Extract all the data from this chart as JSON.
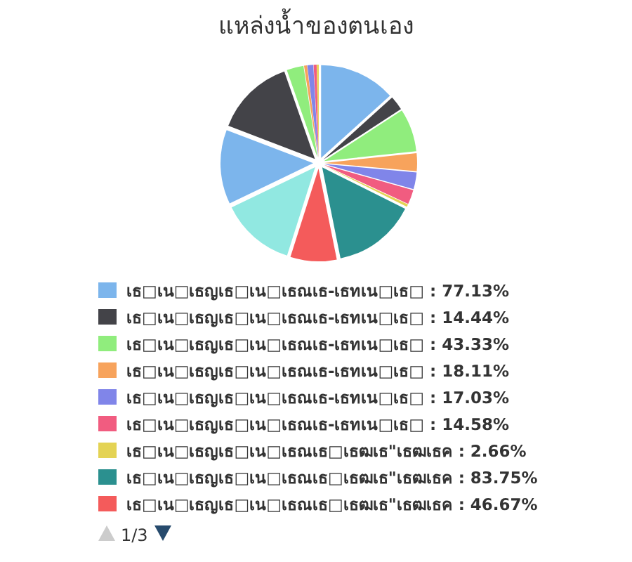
{
  "chart_data": {
    "type": "pie",
    "title": "แหล่งน้ำของตนเอง",
    "categories": [
      "เธ□เน□เธญเธ□เน□เธณเธ-เธทเน□เธ□",
      "เธ□เน□เธญเธ□เน□เธณเธ-เธทเน□เธ□",
      "เธ□เน□เธญเธ□เน□เธณเธ-เธทเน□เธ□",
      "เธ□เน□เธญเธ□เน□เธณเธ-เธทเน□เธ□",
      "เธ□เน□เธญเธ□เน□เธณเธ-เธทเน□เธ□",
      "เธ□เน□เธญเธ□เน□เธณเธ-เธทเน□เธ□",
      "เธ□เน□เธญเธ□เน□เธณเธ□เธฒเธ\"เธฒเธค",
      "เธ□เน□เธญเธ□เน□เธณเธ□เธฒเธ\"เธฒเธค",
      "เธ□เน□เธญเธ□เน□เธณเธ□เธฒเธ\"เธฒเธค",
      null,
      null,
      null,
      null,
      null,
      null,
      null,
      null
    ],
    "values": [
      77.13,
      14.44,
      43.33,
      18.11,
      17.03,
      14.58,
      2.66,
      83.75,
      46.67,
      75,
      75,
      80,
      17,
      3,
      6,
      3,
      2
    ],
    "value_labels": [
      "77.13%",
      "14.44%",
      "43.33%",
      "18.11%",
      "17.03%",
      "14.58%",
      "2.66%",
      "83.75%",
      "46.67%",
      null,
      null,
      null,
      null,
      null,
      null,
      null,
      null
    ],
    "colors": [
      "#7cb5ec",
      "#434348",
      "#90ed7d",
      "#f7a35c",
      "#8085e9",
      "#f15c80",
      "#e4d354",
      "#2b908f",
      "#f45b5b",
      "#91e8e1",
      "#7cb5ec",
      "#434348",
      "#90ed7d",
      "#f7a35c",
      "#8085e9",
      "#f15c80",
      "#e4d354"
    ],
    "legend": "bottom",
    "annotations": [
      "1/3"
    ]
  }
}
